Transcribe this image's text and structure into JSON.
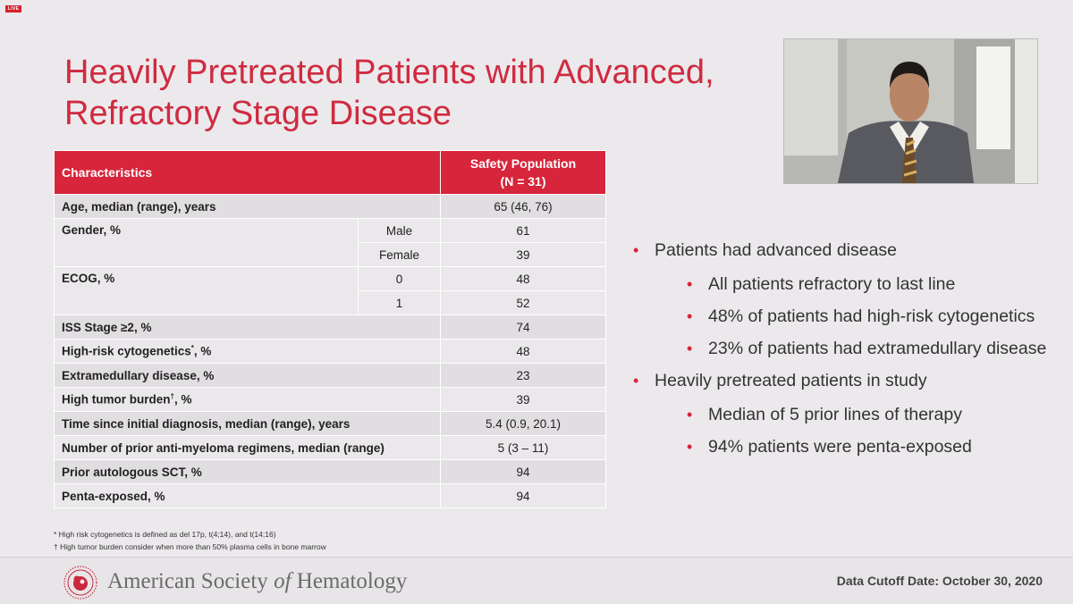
{
  "live_badge": "LIVE",
  "title_line1": "Heavily Pretreated Patients with Advanced,",
  "title_line2": "Refractory Stage Disease",
  "table": {
    "header_characteristics": "Characteristics",
    "header_population_line1": "Safety Population",
    "header_population_line2": "(N = 31)",
    "rows": {
      "age": {
        "label": "Age, median (range), years",
        "value": "65 (46, 76)"
      },
      "gender": {
        "label": "Gender, %",
        "male_label": "Male",
        "male_value": "61",
        "female_label": "Female",
        "female_value": "39"
      },
      "ecog": {
        "label": "ECOG, %",
        "zero_label": "0",
        "zero_value": "48",
        "one_label": "1",
        "one_value": "52"
      },
      "iss": {
        "label": "ISS Stage ≥2,  %",
        "value": "74"
      },
      "cyto": {
        "label": "High-risk cytogenetics",
        "mark": "*",
        "suffix": ", %",
        "value": "48"
      },
      "extra": {
        "label": "Extramedullary disease, %",
        "value": "23"
      },
      "tumor": {
        "label": "High tumor burden",
        "mark": "†",
        "suffix": ", %",
        "value": "39"
      },
      "time": {
        "label": "Time since initial diagnosis, median (range), years",
        "value": "5.4 (0.9, 20.1)"
      },
      "regimens": {
        "label": "Number of prior anti-myeloma regimens, median (range)",
        "value": "5 (3 – 11)"
      },
      "sct": {
        "label": "Prior autologous SCT, %",
        "value": "94"
      },
      "penta": {
        "label": "Penta-exposed, %",
        "value": "94"
      }
    }
  },
  "footnotes": {
    "note1": "* High risk cytogenetics is defined as del 17p, t(4;14), and t(14;16)",
    "note2": "† High tumor burden consider when more than 50% plasma cells in bone marrow"
  },
  "bullets": {
    "b1": "Patients had advanced disease",
    "b1a": "All patients refractory to last line",
    "b1b": "48% of patients had high-risk cytogenetics",
    "b1c": "23% of patients had extramedullary disease",
    "b2": "Heavily pretreated patients in study",
    "b2a": "Median of 5 prior lines of therapy",
    "b2b": "94% patients were penta-exposed"
  },
  "footer": {
    "org_part1": "American Society ",
    "org_of": "of",
    "org_part2": " Hematology",
    "cutoff": "Data Cutoff Date: October 30, 2020"
  },
  "colors": {
    "accent": "#d7253b",
    "title": "#cf2b40",
    "background": "#ece9ec"
  },
  "icons": {
    "live": "live-badge",
    "logo": "ash-logo",
    "speaker": "speaker-video"
  }
}
